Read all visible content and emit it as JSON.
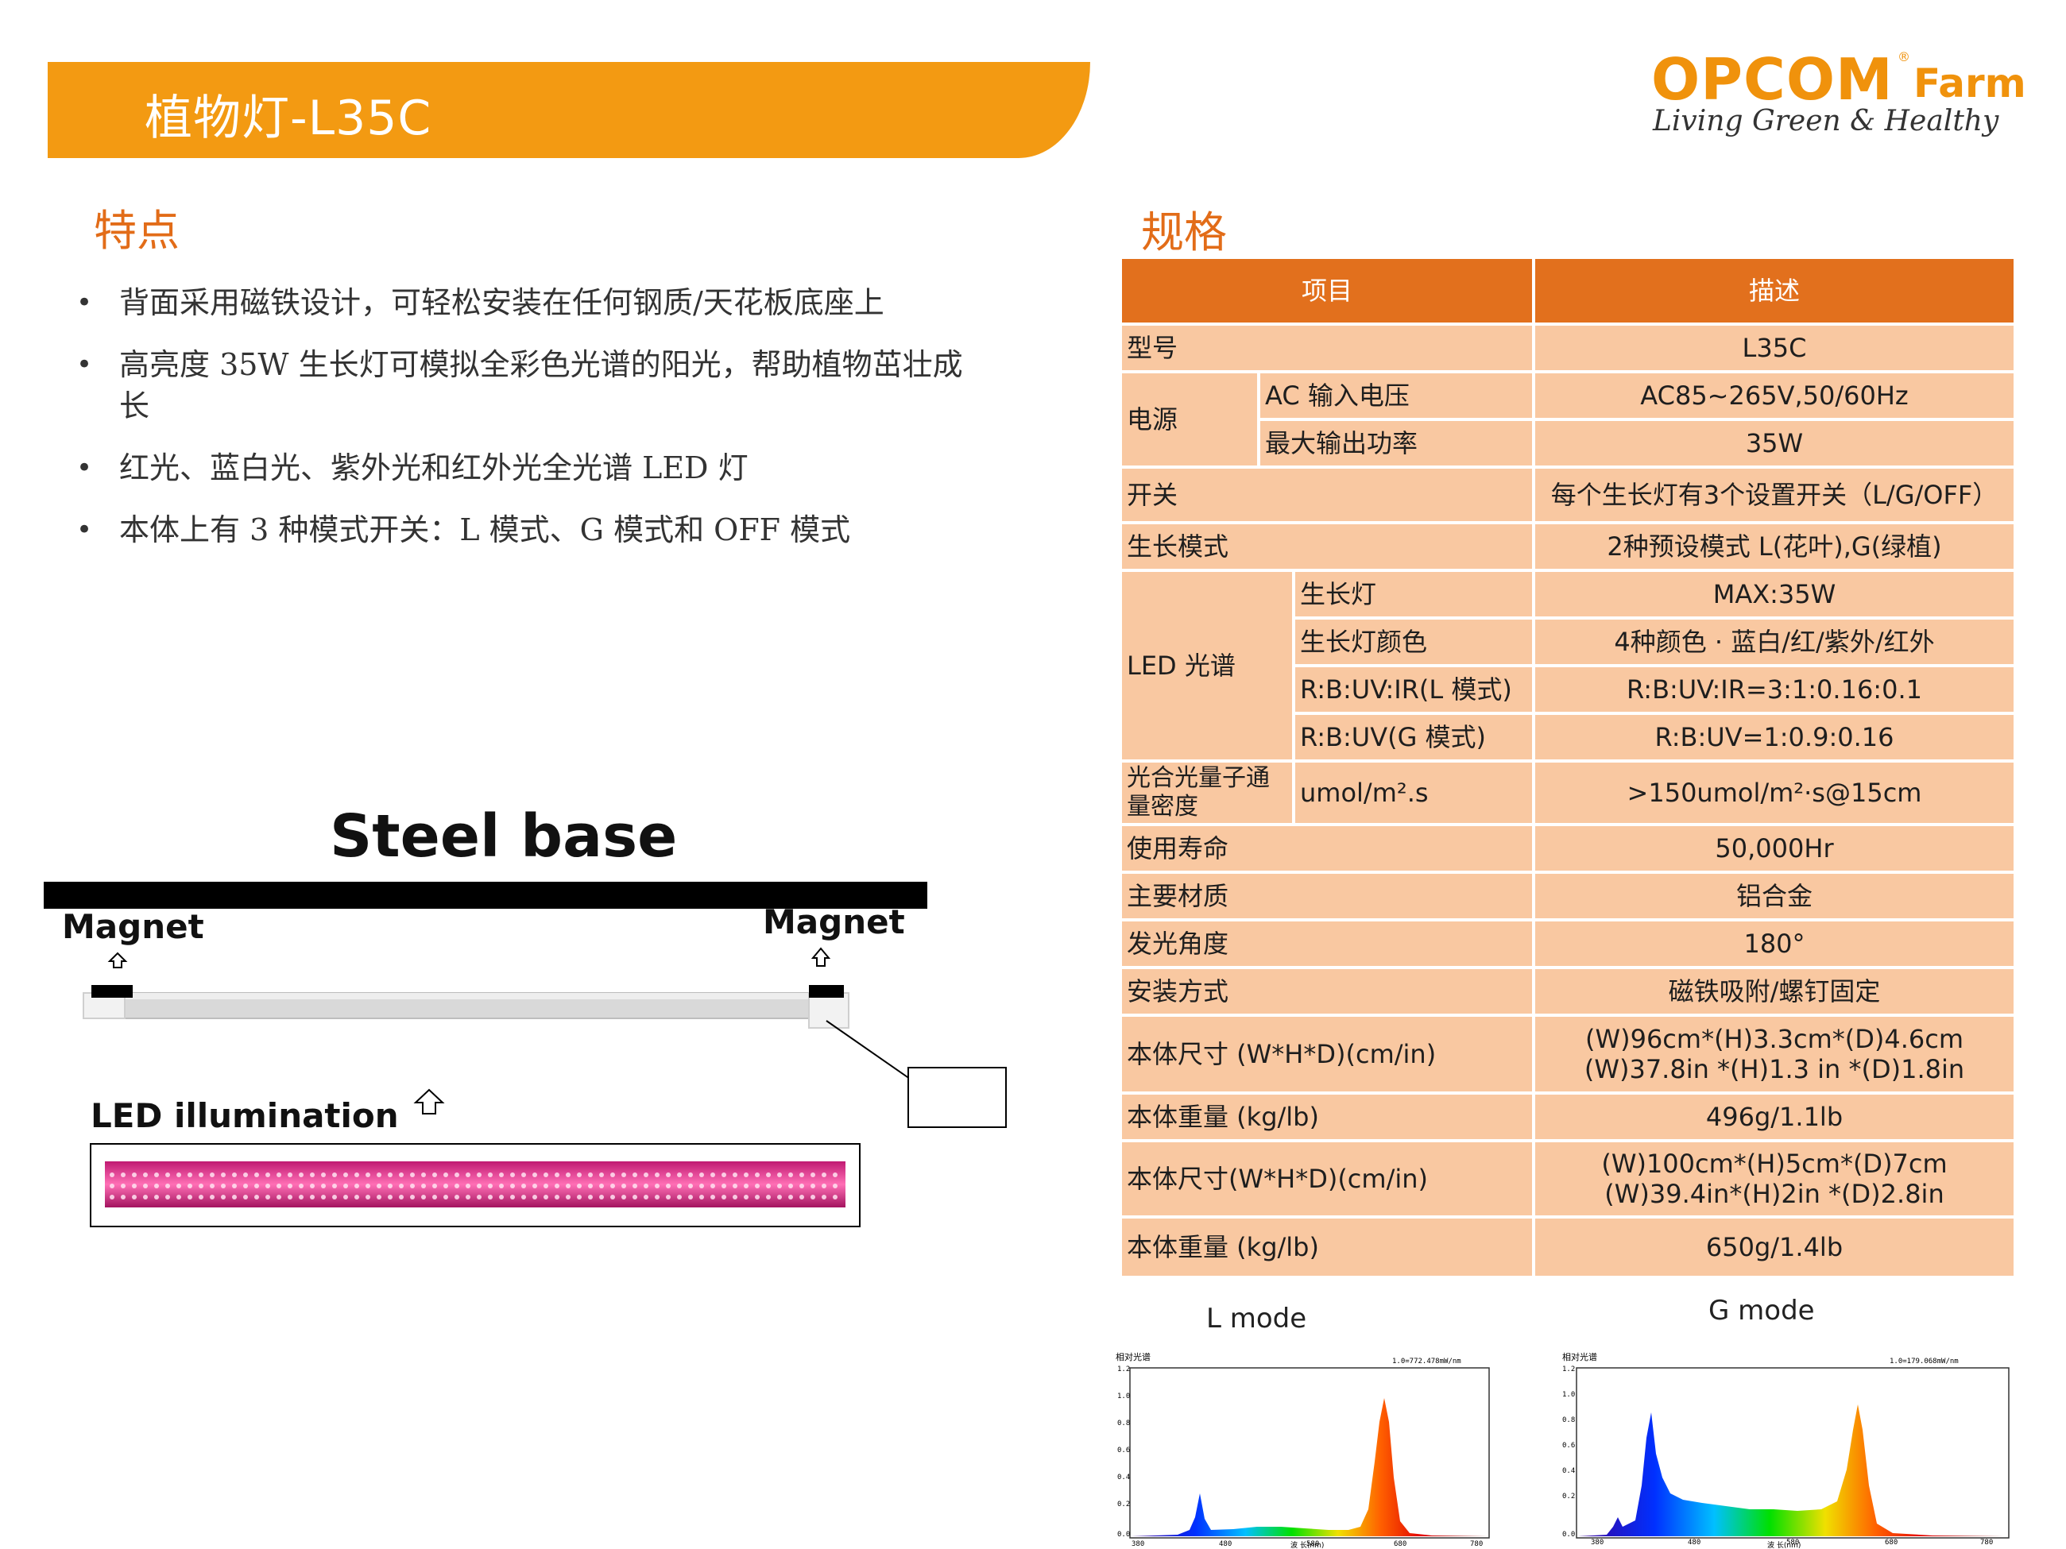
{
  "header": {
    "title": "植物灯-L35C",
    "accent_color": "#f39a12"
  },
  "logo": {
    "brand": "OPCOM",
    "reg": "®",
    "suffix": "Farm",
    "tagline": "Living Green & Healthy"
  },
  "features": {
    "heading": "特点",
    "items": [
      "背面采用磁铁设计，可轻松安装在任何钢质/天花板底座上",
      "高亮度 35W 生长灯可模拟全彩色光谱的阳光，帮助植物茁壮成长",
      "红光、蓝白光、紫外光和红外光全光谱 LED 灯",
      "本体上有 3 种模式开关：L 模式、G 模式和 OFF 模式"
    ]
  },
  "diagram": {
    "steel_base": "Steel base",
    "magnet_left": "Magnet",
    "magnet_right": "Magnet",
    "led_label": "LED illumination"
  },
  "spec": {
    "heading": "规格",
    "header_item": "项目",
    "header_desc": "描述",
    "model_label": "型号",
    "model_value": "L35C",
    "power_label": "电源",
    "ac_input_label": "AC 输入电压",
    "ac_input_value": "AC85~265V,50/60Hz",
    "max_output_label": "最大输出功率",
    "max_output_value": "35W",
    "switch_label": "开关",
    "switch_value": "每个生长灯有3个设置开关（L/G/OFF）",
    "growth_mode_label": "生长模式",
    "growth_mode_value": "2种预设模式  L(花叶),G(绿植)",
    "led_spectrum_label": "LED 光谱",
    "grow_light_label": "生长灯",
    "grow_light_value": "MAX:35W",
    "grow_color_label": "生长灯颜色",
    "grow_color_value": "4种颜色 · 蓝白/红/紫外/红外",
    "ratio_l_label": "R:B:UV:IR(L 模式)",
    "ratio_l_value": "R:B:UV:IR=3:1:0.16:0.1",
    "ratio_g_label": "R:B:UV(G 模式)",
    "ratio_g_value": "R:B:UV=1:0.9:0.16",
    "ppfd_label": "光合光量子通量密度",
    "ppfd_unit": "umol/m².s",
    "ppfd_value": ">150umol/m²·s@15cm",
    "life_label": "使用寿命",
    "life_value": "50,000Hr",
    "material_label": "主要材质",
    "material_value": "铝合金",
    "angle_label": "发光角度",
    "angle_value": "180°",
    "install_label": "安装方式",
    "install_value": "磁铁吸附/螺钉固定",
    "size1_label": "本体尺寸 (W*H*D)(cm/in)",
    "size1_value_cm": "(W)96cm*(H)3.3cm*(D)4.6cm",
    "size1_value_in": "(W)37.8in *(H)1.3 in *(D)1.8in",
    "weight1_label": "本体重量 (kg/lb)",
    "weight1_value": "496g/1.1lb",
    "size2_label": "本体尺寸(W*H*D)(cm/in)",
    "size2_value_cm": "(W)100cm*(H)5cm*(D)7cm",
    "size2_value_in": "(W)39.4in*(H)2in *(D)2.8in",
    "weight2_label": "本体重量 (kg/lb)",
    "weight2_value": "650g/1.4lb"
  },
  "modes": {
    "l_mode": "L mode",
    "g_mode": "G  mode"
  },
  "spectra": {
    "l": {
      "ylabel": "相对光谱",
      "scale": "1.0=772.478mW/nm",
      "xlabel": "波 长(nm)",
      "yticks": [
        "1.2",
        "1.0",
        "0.8",
        "0.6",
        "0.4",
        "0.2",
        "0.0"
      ],
      "xticks": [
        "380",
        "480",
        "580",
        "680",
        "780"
      ]
    },
    "g": {
      "ylabel": "相对光谱",
      "scale": "1.0=179.068mW/nm",
      "xlabel": "波 长(nm)",
      "yticks": [
        "1.2",
        "1.0",
        "0.8",
        "0.6",
        "0.4",
        "0.2",
        "0.0"
      ],
      "xticks": [
        "380",
        "480",
        "580",
        "680",
        "780"
      ]
    }
  }
}
